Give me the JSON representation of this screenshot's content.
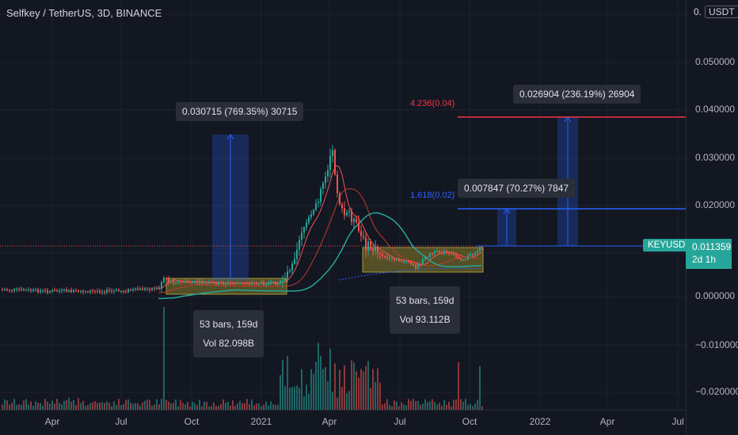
{
  "header": {
    "symbol_title": "Selfkey / TetherUS, 3D, BINANCE",
    "currency_prefix": "0.",
    "currency": "USDT"
  },
  "price_axis": {
    "ticks": [
      "0.050000",
      "0.040000",
      "0.030000",
      "0.020000",
      "0.011359",
      "0.000000",
      "−0.010000",
      "−0.020000"
    ]
  },
  "time_axis": {
    "ticks": [
      "Apr",
      "Jul",
      "Oct",
      "2021",
      "Apr",
      "Jul",
      "Oct",
      "2022",
      "Apr",
      "Jul"
    ]
  },
  "current": {
    "ticker": "KEYUSDT",
    "price": "0.011359",
    "countdown": "2d 1h"
  },
  "fib_levels": [
    {
      "label": "4.236(0.04)",
      "color": "#f23645"
    },
    {
      "label": "1.618(0.02)",
      "color": "#2962ff"
    }
  ],
  "measurements": [
    {
      "label": "0.030715 (769.35%) 30715"
    },
    {
      "label": "0.007847 (70.27%) 7847"
    },
    {
      "label": "0.026904 (236.19%) 26904"
    }
  ],
  "ranges": [
    {
      "bars": "53 bars, 159d",
      "vol": "Vol 82.098B"
    },
    {
      "bars": "53 bars, 159d",
      "vol": "Vol 93.112B"
    }
  ],
  "colors": {
    "up": "#26a69a",
    "down": "#ef5350",
    "background": "#131722",
    "grid": "#2a2e39",
    "measure": "#2962ff",
    "range_box": "#8a7d2a"
  }
}
